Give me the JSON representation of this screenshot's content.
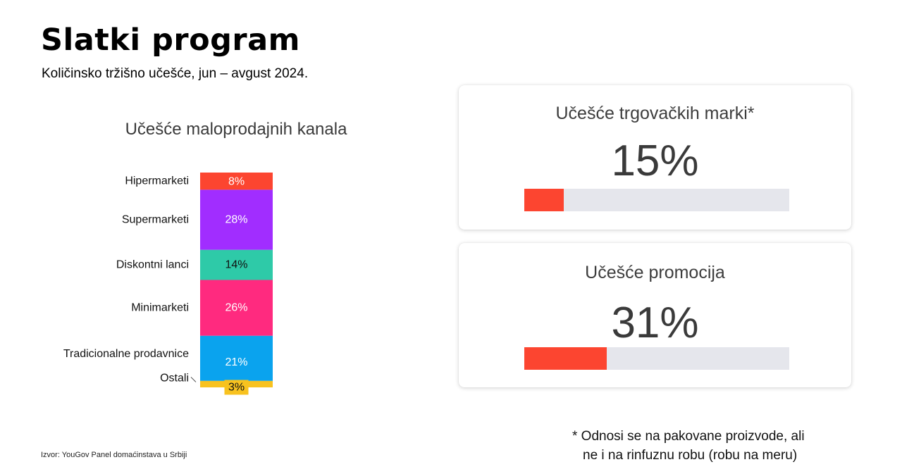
{
  "header": {
    "title": "Slatki program",
    "subtitle": "Količinsko tržišno učešće, jun – avgust 2024."
  },
  "chart_data": {
    "type": "bar",
    "stacked": true,
    "title": "Učešće maloprodajnih kanala",
    "unit": "%",
    "segments": [
      {
        "label": "Hipermarketi",
        "value": 8,
        "value_label": "8%",
        "color": "#fc4530",
        "text_color": "#ffffff"
      },
      {
        "label": "Supermarketi",
        "value": 28,
        "value_label": "28%",
        "color": "#a12dff",
        "text_color": "#ffffff"
      },
      {
        "label": "Diskontni lanci",
        "value": 14,
        "value_label": "14%",
        "color": "#2ecaa8",
        "text_color": "#111111"
      },
      {
        "label": "Minimarketi",
        "value": 26,
        "value_label": "26%",
        "color": "#ff2a7f",
        "text_color": "#ffffff"
      },
      {
        "label": "Tradicionalne prodavnice",
        "value": 21,
        "value_label": "21%",
        "color": "#0aa3ee",
        "text_color": "#ffffff"
      },
      {
        "label": "Ostali",
        "value": 3,
        "value_label": "3%",
        "color": "#f8c21f",
        "text_color": "#111111"
      }
    ]
  },
  "kpis": [
    {
      "label": "Učešće trgovačkih marki*",
      "value": "15%",
      "fill": 0.15,
      "color": "#fc4530"
    },
    {
      "label": "Učešće promocija",
      "value": "31%",
      "fill": 0.31,
      "color": "#fc4530"
    }
  ],
  "footnote": {
    "line1": "* Odnosi se na pakovane proizvode, ali",
    "line2": "ne i na rinfuznu robu (robu na meru)"
  },
  "source": "Izvor: YouGov Panel domaćinstava u Srbiji"
}
